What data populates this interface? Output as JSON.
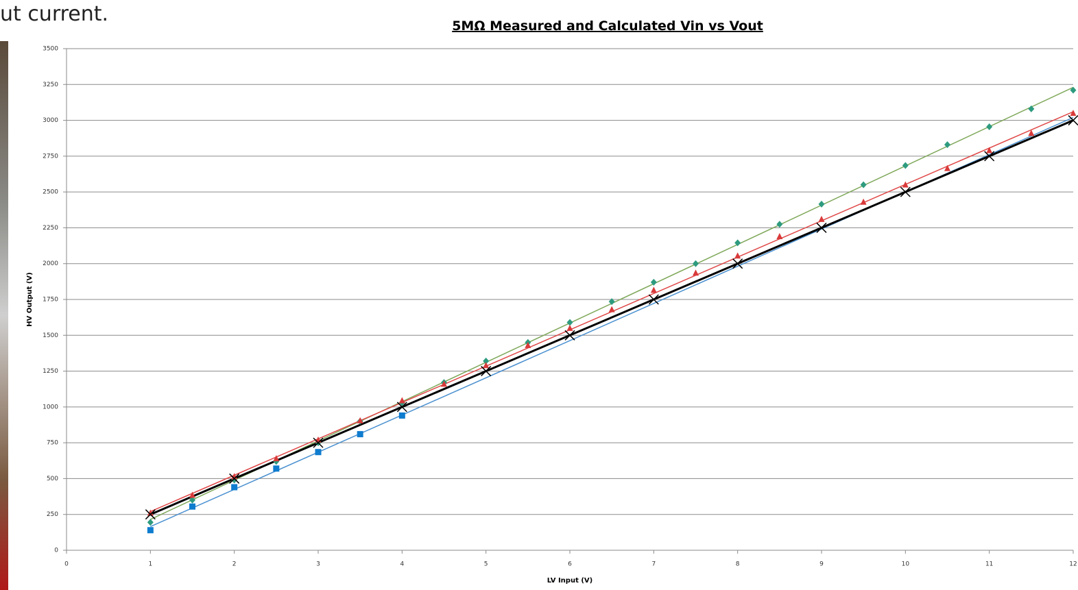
{
  "page_text": "ut current.",
  "chart_data": {
    "type": "scatter",
    "title": "5MΩ Measured and Calculated Vin vs Vout",
    "x_label": "LV Input (V)",
    "y_label": "HV Output (V)",
    "xlim": [
      0,
      12
    ],
    "xticks": [
      0,
      1,
      2,
      3,
      4,
      5,
      6,
      7,
      8,
      9,
      10,
      11,
      12
    ],
    "ylim": [
      0,
      3500
    ],
    "yticks": [
      0,
      250,
      500,
      750,
      1000,
      1250,
      1500,
      1750,
      2000,
      2250,
      2500,
      2750,
      3000,
      3250,
      3500
    ],
    "grid": true,
    "series": [
      {
        "color": "#0e7ccf",
        "marker": "square",
        "x": [
          1,
          1.5,
          2,
          2.5,
          3,
          3.5,
          4
        ],
        "values": [
          140,
          305,
          440,
          570,
          685,
          810,
          940
        ]
      },
      {
        "color": "#2e9b7f",
        "marker": "diamond",
        "x": [
          1,
          1.5,
          2,
          2.5,
          3,
          3.5,
          4,
          4.5,
          5,
          5.5,
          6,
          6.5,
          7,
          7.5,
          8,
          8.5,
          9,
          9.5,
          10,
          10.5,
          11,
          11.5,
          12
        ],
        "values": [
          195,
          350,
          490,
          620,
          750,
          900,
          1030,
          1170,
          1320,
          1450,
          1590,
          1735,
          1870,
          2000,
          2145,
          2275,
          2415,
          2550,
          2685,
          2830,
          2955,
          3080,
          3210
        ]
      },
      {
        "color": "#d93a3a",
        "marker": "triangle",
        "x": [
          1,
          1.5,
          2,
          2.5,
          3,
          3.5,
          4,
          4.5,
          5,
          5.5,
          6,
          6.5,
          7,
          7.5,
          8,
          8.5,
          9,
          9.5,
          10,
          10.5,
          11,
          11.5,
          12
        ],
        "values": [
          260,
          385,
          515,
          640,
          770,
          905,
          1045,
          1160,
          1290,
          1430,
          1550,
          1680,
          1815,
          1935,
          2055,
          2190,
          2310,
          2430,
          2550,
          2665,
          2790,
          2910,
          3050
        ]
      },
      {
        "color": "#4a90d0",
        "marker": "none",
        "x": [
          1,
          12
        ],
        "values": [
          165,
          3020
        ]
      },
      {
        "color": "#7fa85a",
        "marker": "none",
        "x": [
          1,
          12
        ],
        "values": [
          215,
          3230
        ]
      },
      {
        "color": "#e04848",
        "marker": "none",
        "x": [
          1,
          12
        ],
        "values": [
          270,
          3060
        ]
      },
      {
        "color": "#000000",
        "marker": "x",
        "line": true,
        "x": [
          1,
          2,
          3,
          4,
          5,
          6,
          7,
          8,
          9,
          10,
          11,
          12
        ],
        "values": [
          250,
          500,
          750,
          1000,
          1250,
          1500,
          1750,
          2000,
          2250,
          2500,
          2750,
          3000
        ]
      }
    ]
  }
}
